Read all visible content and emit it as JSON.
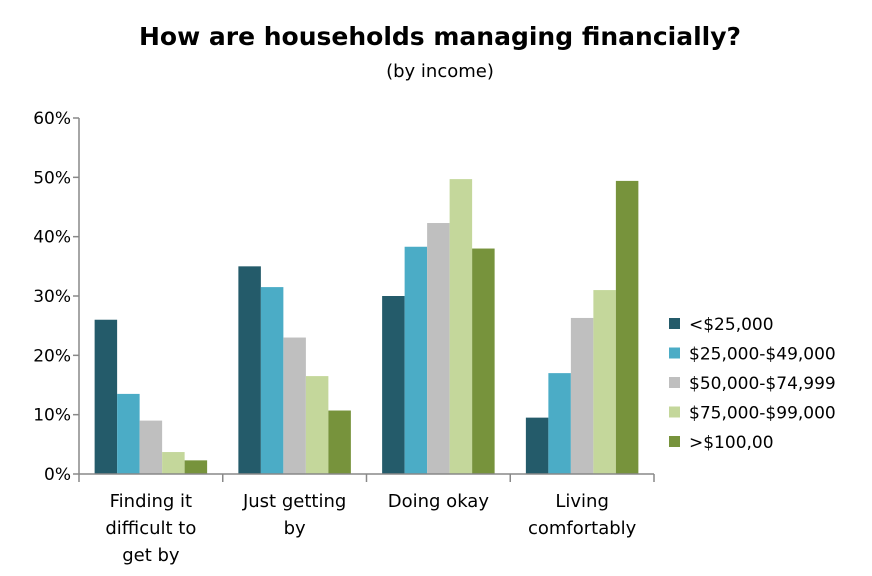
{
  "chart_data": {
    "type": "bar",
    "title": "How are households managing financially?",
    "subtitle": "(by income)",
    "xlabel": "",
    "ylabel": "",
    "ylim": [
      0,
      60
    ],
    "yticks": [
      "0%",
      "10%",
      "20%",
      "30%",
      "40%",
      "50%",
      "60%"
    ],
    "grid": false,
    "legend_position": "right",
    "categories": [
      [
        "Finding it",
        "difficult to",
        "get by"
      ],
      [
        "Just getting",
        "by"
      ],
      [
        "Doing okay"
      ],
      [
        "Living",
        "comfortably"
      ]
    ],
    "series": [
      {
        "name": "<$25,000",
        "color": "#245B6A",
        "values": [
          26,
          35,
          30,
          9.5
        ]
      },
      {
        "name": "$25,000-$49,000",
        "color": "#4BACC6",
        "values": [
          13.5,
          31.5,
          38.3,
          17
        ]
      },
      {
        "name": "$50,000-$74,999",
        "color": "#BFBFBF",
        "values": [
          9,
          23,
          42.3,
          26.3
        ]
      },
      {
        "name": "$75,000-$99,000",
        "color": "#C4D79B",
        "values": [
          3.7,
          16.5,
          49.7,
          31
        ]
      },
      {
        "name": ">$100,00",
        "color": "#77933C",
        "values": [
          2.3,
          10.7,
          38,
          49.4
        ]
      }
    ]
  }
}
